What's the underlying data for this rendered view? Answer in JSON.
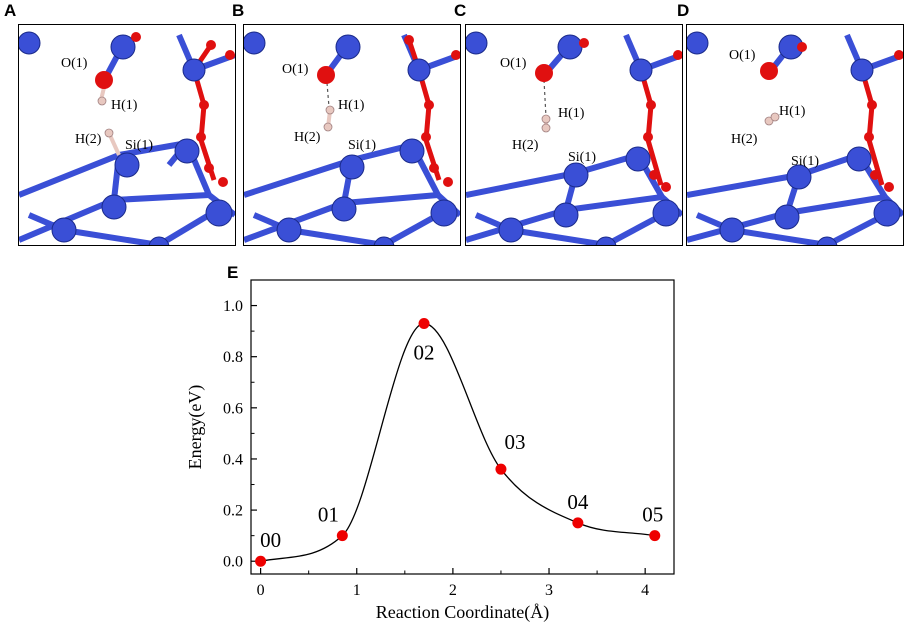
{
  "panels": [
    {
      "letter": "A",
      "labels": {
        "o1": "O(1)",
        "h1": "H(1)",
        "h2": "H(2)",
        "si1": "Si(1)"
      }
    },
    {
      "letter": "B",
      "labels": {
        "o1": "O(1)",
        "h1": "H(1)",
        "h2": "H(2)",
        "si1": "Si(1)"
      }
    },
    {
      "letter": "C",
      "labels": {
        "o1": "O(1)",
        "h1": "H(1)",
        "h2": "H(2)",
        "si1": "Si(1)"
      }
    },
    {
      "letter": "D",
      "labels": {
        "o1": "O(1)",
        "h1": "H(1)",
        "h2": "H(2)",
        "si1": "Si(1)"
      }
    }
  ],
  "colors": {
    "silicon": "#3a4fd6",
    "oxygen": "#e01010",
    "hydrogen": "#e8c8c0",
    "point": "#ee0000"
  },
  "chart_data": {
    "type": "line",
    "panel_letter": "E",
    "xlabel": "Reaction Coordinate(Å)",
    "ylabel": "Energy(eV)",
    "xlim": [
      -0.1,
      4.3
    ],
    "ylim": [
      -0.05,
      1.1
    ],
    "xticks": [
      "0",
      "1",
      "2",
      "3",
      "4"
    ],
    "yticks": [
      "0.0",
      "0.2",
      "0.4",
      "0.6",
      "0.8",
      "1.0"
    ],
    "grid": false,
    "series": [
      {
        "x": [
          0,
          0.85,
          1.7,
          2.5,
          3.3,
          4.1
        ],
        "y": [
          0.0,
          0.1,
          0.93,
          0.36,
          0.15,
          0.1
        ],
        "labels": [
          "00",
          "01",
          "02",
          "03",
          "04",
          "05"
        ]
      }
    ]
  }
}
